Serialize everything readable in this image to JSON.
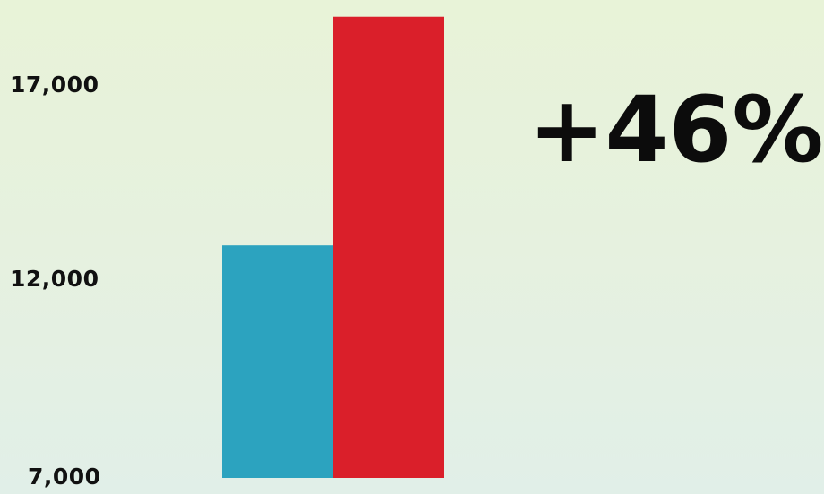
{
  "chart_data": {
    "type": "bar",
    "categories": [
      "",
      ""
    ],
    "values": [
      13000,
      18900
    ],
    "colors": [
      "#2ca3bf",
      "#da1f2a"
    ],
    "ylim": [
      7000,
      18900
    ],
    "yticks": [
      {
        "value": 17000,
        "label": "17,000"
      },
      {
        "value": 12000,
        "label": "12,000"
      },
      {
        "value": 7000,
        "label": "7,000"
      }
    ],
    "annotation": "+46%",
    "grid": false,
    "title": "",
    "xlabel": "",
    "ylabel": ""
  }
}
